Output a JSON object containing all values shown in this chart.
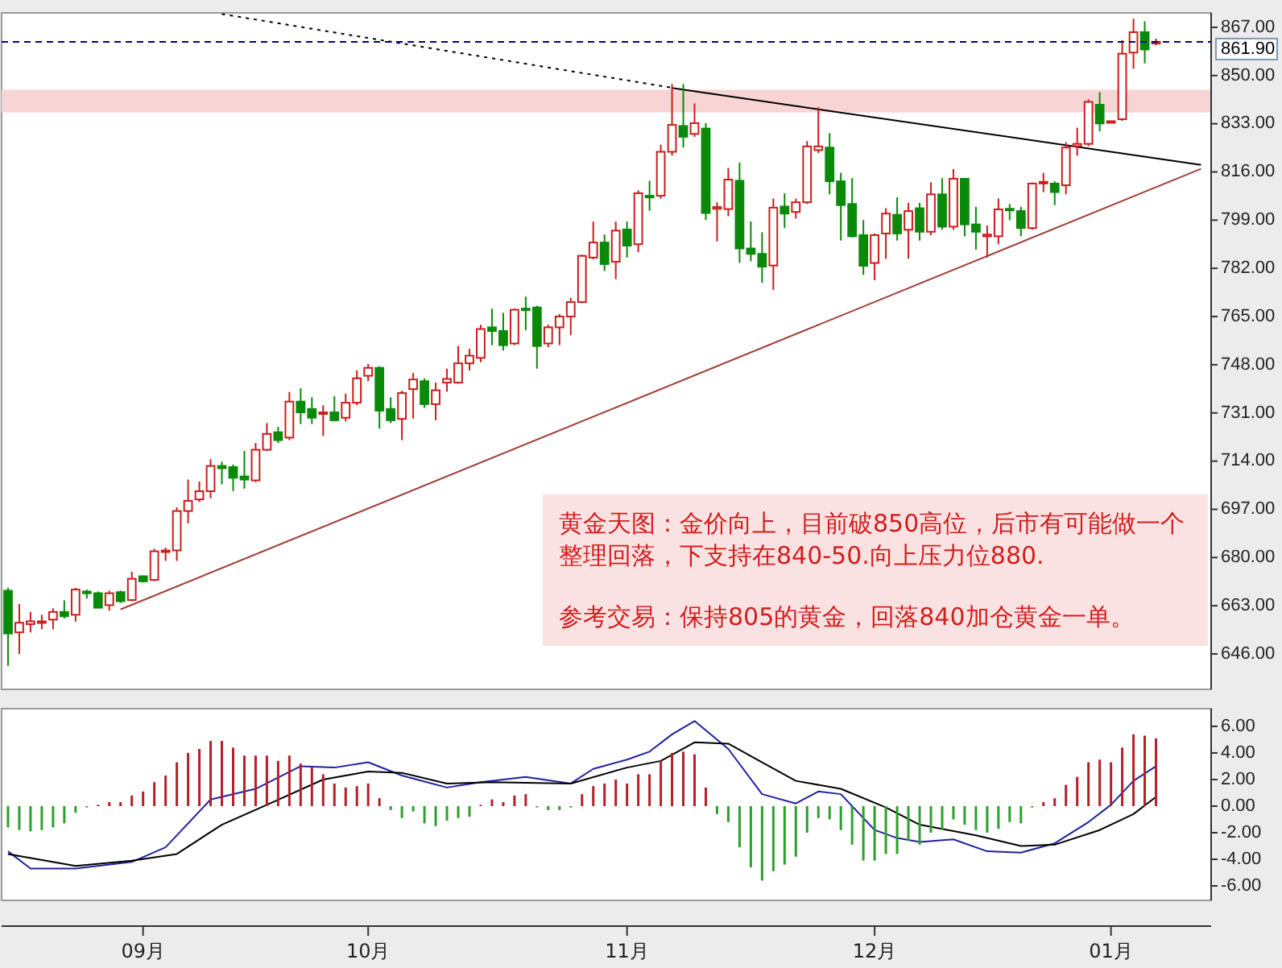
{
  "chart_data": [
    {
      "type": "candlestick",
      "tick_labels": "y",
      "ylim": [
        633.5,
        872.1
      ],
      "yticks": [
        {
          "value": 646,
          "label": "646.00"
        },
        {
          "value": 663,
          "label": "663.00"
        },
        {
          "value": 680,
          "label": "680.00"
        },
        {
          "value": 697,
          "label": "697.00"
        },
        {
          "value": 714,
          "label": "714.00"
        },
        {
          "value": 731,
          "label": "731.00"
        },
        {
          "value": 748,
          "label": "748.00"
        },
        {
          "value": 765,
          "label": "765.00"
        },
        {
          "value": 782,
          "label": "782.00"
        },
        {
          "value": 799,
          "label": "799.00"
        },
        {
          "value": 816,
          "label": "816.00"
        },
        {
          "value": 833,
          "label": "833.00"
        },
        {
          "value": 850,
          "label": "850.00"
        },
        {
          "value": 867,
          "label": "867.00"
        }
      ],
      "categories": [
        null,
        null,
        null,
        null,
        null,
        null,
        null,
        null,
        null,
        null,
        null,
        null,
        null,
        null,
        null,
        null,
        null,
        null,
        null,
        null,
        null,
        null,
        null,
        null,
        null,
        null,
        null,
        null,
        null,
        null,
        null,
        null,
        null,
        null,
        null,
        null,
        null,
        null,
        null,
        null,
        null,
        null,
        null,
        null,
        null,
        null,
        null,
        null,
        null,
        null,
        null,
        null,
        null,
        null,
        null,
        null,
        null,
        null,
        null,
        null,
        null,
        null,
        null,
        null,
        null,
        null,
        null,
        null,
        null,
        null,
        null,
        null,
        null,
        null,
        null,
        null,
        null,
        null,
        null,
        null,
        null,
        null,
        null,
        null,
        null,
        null,
        null,
        null,
        null,
        null,
        null,
        null,
        null,
        null,
        null,
        null,
        null,
        null,
        null,
        null,
        null,
        null,
        null,
        null,
        null,
        null,
        null
      ],
      "ohlc": [
        [
          668.3,
          669.3,
          641.8,
          653.2
        ],
        [
          653.6,
          663.6,
          646.0,
          657.0
        ],
        [
          656.5,
          660.8,
          653.6,
          657.5
        ],
        [
          657.0,
          659.8,
          654.7,
          657.5
        ],
        [
          658.1,
          662.1,
          654.7,
          660.8
        ],
        [
          660.8,
          664.9,
          658.5,
          659.3
        ],
        [
          659.8,
          669.3,
          657.4,
          668.7
        ],
        [
          668.0,
          668.7,
          665.5,
          667.4
        ],
        [
          667.4,
          668.0,
          662.1,
          662.3
        ],
        [
          663.2,
          668.3,
          661.3,
          667.4
        ],
        [
          667.8,
          668.3,
          664.0,
          664.6
        ],
        [
          665.0,
          675.0,
          664.6,
          672.5
        ],
        [
          673.4,
          673.6,
          671.2,
          671.6
        ],
        [
          672.1,
          683.1,
          671.7,
          682.2
        ],
        [
          682.0,
          683.5,
          678.8,
          682.5
        ],
        [
          682.5,
          697.7,
          678.8,
          696.4
        ],
        [
          696.4,
          707.5,
          692.0,
          700.0
        ],
        [
          700.5,
          706.8,
          699.6,
          703.4
        ],
        [
          703.4,
          714.7,
          700.9,
          712.3
        ],
        [
          712.3,
          713.8,
          705.8,
          711.5
        ],
        [
          711.9,
          712.8,
          703.4,
          708.1
        ],
        [
          708.6,
          717.6,
          704.3,
          707.5
        ],
        [
          707.2,
          720.4,
          706.6,
          718.0
        ],
        [
          718.0,
          727.4,
          717.6,
          723.6
        ],
        [
          724.2,
          726.1,
          720.4,
          721.4
        ],
        [
          722.3,
          738.4,
          721.4,
          735.0
        ],
        [
          735.0,
          739.7,
          727.1,
          731.2
        ],
        [
          732.4,
          736.5,
          727.1,
          729.3
        ],
        [
          730.8,
          733.7,
          722.9,
          731.2
        ],
        [
          731.2,
          736.9,
          728.0,
          728.4
        ],
        [
          729.3,
          737.8,
          728.0,
          734.6
        ],
        [
          734.6,
          746.0,
          733.7,
          743.2
        ],
        [
          744.1,
          748.3,
          742.2,
          746.9
        ],
        [
          746.9,
          747.5,
          725.5,
          731.8
        ],
        [
          732.4,
          736.5,
          727.4,
          728.4
        ],
        [
          728.9,
          738.8,
          721.4,
          738.0
        ],
        [
          739.4,
          745.1,
          729.0,
          742.8
        ],
        [
          742.2,
          743.2,
          732.8,
          734.1
        ],
        [
          734.1,
          741.7,
          728.4,
          739.0
        ],
        [
          741.7,
          746.6,
          738.5,
          743.0
        ],
        [
          741.7,
          754.6,
          741.3,
          748.5
        ],
        [
          748.5,
          753.6,
          746.0,
          751.2
        ],
        [
          750.4,
          762.1,
          748.9,
          760.6
        ],
        [
          761.2,
          767.8,
          754.9,
          759.9
        ],
        [
          759.9,
          766.3,
          753.0,
          754.9
        ],
        [
          755.5,
          767.8,
          754.9,
          767.4
        ],
        [
          767.8,
          772.0,
          760.2,
          767.4
        ],
        [
          768.2,
          768.8,
          746.6,
          754.6
        ],
        [
          755.5,
          762.1,
          754.2,
          761.2
        ],
        [
          761.2,
          765.9,
          754.9,
          765.0
        ],
        [
          765.0,
          771.6,
          758.4,
          770.1
        ],
        [
          770.1,
          786.8,
          769.7,
          786.4
        ],
        [
          785.8,
          798.5,
          785.2,
          791.1
        ],
        [
          791.1,
          793.9,
          781.1,
          783.5
        ],
        [
          784.3,
          798.5,
          778.2,
          795.3
        ],
        [
          795.7,
          798.5,
          785.8,
          790.0
        ],
        [
          790.5,
          809.5,
          787.7,
          808.5
        ],
        [
          807.6,
          812.9,
          802.3,
          807.0
        ],
        [
          807.6,
          825.6,
          806.6,
          823.1
        ],
        [
          823.1,
          847.0,
          821.8,
          832.6
        ],
        [
          832.2,
          847.0,
          824.6,
          828.4
        ],
        [
          829.4,
          840.2,
          828.4,
          833.2
        ],
        [
          831.3,
          833.2,
          799.1,
          801.5
        ],
        [
          803.0,
          805.3,
          791.5,
          803.6
        ],
        [
          802.9,
          817.4,
          800.4,
          813.3
        ],
        [
          812.9,
          819.3,
          783.9,
          789.0
        ],
        [
          789.0,
          798.5,
          784.5,
          787.1
        ],
        [
          787.1,
          794.7,
          776.9,
          782.6
        ],
        [
          783.0,
          806.6,
          774.4,
          803.4
        ],
        [
          803.8,
          808.5,
          796.2,
          801.3
        ],
        [
          801.9,
          806.6,
          799.6,
          805.3
        ],
        [
          805.3,
          826.9,
          804.7,
          825.0
        ],
        [
          823.7,
          838.8,
          822.7,
          825.0
        ],
        [
          824.6,
          829.7,
          808.1,
          812.7
        ],
        [
          812.7,
          815.7,
          791.8,
          804.3
        ],
        [
          804.7,
          813.8,
          792.9,
          793.3
        ],
        [
          793.7,
          799.0,
          779.7,
          782.9
        ],
        [
          783.9,
          794.3,
          777.8,
          793.7
        ],
        [
          794.3,
          803.2,
          785.4,
          801.3
        ],
        [
          800.9,
          807.0,
          791.8,
          794.3
        ],
        [
          795.6,
          805.1,
          785.4,
          802.2
        ],
        [
          803.2,
          805.1,
          791.8,
          794.9
        ],
        [
          794.9,
          812.3,
          793.7,
          808.1
        ],
        [
          808.1,
          813.8,
          795.6,
          796.7
        ],
        [
          796.7,
          817.0,
          795.6,
          813.6
        ],
        [
          813.6,
          813.6,
          793.3,
          797.5
        ],
        [
          797.5,
          803.7,
          788.6,
          794.9
        ],
        [
          793.3,
          797.1,
          785.8,
          793.9
        ],
        [
          793.3,
          806.6,
          790.5,
          802.8
        ],
        [
          803.0,
          804.7,
          799.0,
          802.5
        ],
        [
          802.2,
          803.7,
          793.3,
          796.2
        ],
        [
          796.2,
          812.3,
          795.6,
          811.9
        ],
        [
          812.1,
          815.7,
          808.9,
          812.5
        ],
        [
          811.9,
          812.7,
          804.3,
          808.9
        ],
        [
          811.3,
          826.5,
          808.1,
          824.6
        ],
        [
          825.1,
          831.6,
          821.7,
          825.9
        ],
        [
          825.9,
          841.6,
          825.1,
          840.7
        ],
        [
          839.7,
          844.1,
          830.3,
          833.1
        ],
        [
          833.7,
          834.0,
          833.5,
          833.9
        ],
        [
          834.6,
          862.5,
          834.0,
          857.7
        ],
        [
          858.1,
          870.0,
          852.4,
          865.3
        ],
        [
          865.3,
          869.1,
          854.3,
          859.2
        ],
        [
          861.3,
          863.0,
          860.6,
          861.9
        ],
        null,
        null,
        null,
        null
      ],
      "colors": [
        "#0a8a0a",
        "#c81e1e",
        "#c81e1e",
        "#c81e1e",
        "#c81e1e",
        "#0a8a0a",
        "#c81e1e",
        "#0a8a0a",
        "#0a8a0a",
        "#c81e1e",
        "#0a8a0a",
        "#c81e1e",
        "#0a8a0a",
        "#c81e1e",
        "#c81e1e",
        "#c81e1e",
        "#c81e1e",
        "#c81e1e",
        "#c81e1e",
        "#0a8a0a",
        "#0a8a0a",
        "#0a8a0a",
        "#c81e1e",
        "#c81e1e",
        "#0a8a0a",
        "#c81e1e",
        "#0a8a0a",
        "#0a8a0a",
        "#c81e1e",
        "#0a8a0a",
        "#c81e1e",
        "#c81e1e",
        "#c81e1e",
        "#0a8a0a",
        "#0a8a0a",
        "#c81e1e",
        "#c81e1e",
        "#0a8a0a",
        "#c81e1e",
        "#c81e1e",
        "#c81e1e",
        "#c81e1e",
        "#c81e1e",
        "#0a8a0a",
        "#0a8a0a",
        "#c81e1e",
        "#0a8a0a",
        "#0a8a0a",
        "#c81e1e",
        "#c81e1e",
        "#c81e1e",
        "#c81e1e",
        "#c81e1e",
        "#0a8a0a",
        "#c81e1e",
        "#0a8a0a",
        "#c81e1e",
        "#0a8a0a",
        "#c81e1e",
        "#c81e1e",
        "#0a8a0a",
        "#c81e1e",
        "#0a8a0a",
        "#c81e1e",
        "#c81e1e",
        "#0a8a0a",
        "#0a8a0a",
        "#0a8a0a",
        "#c81e1e",
        "#0a8a0a",
        "#c81e1e",
        "#c81e1e",
        "#c81e1e",
        "#0a8a0a",
        "#0a8a0a",
        "#0a8a0a",
        "#0a8a0a",
        "#c81e1e",
        "#c81e1e",
        "#0a8a0a",
        "#c81e1e",
        "#0a8a0a",
        "#c81e1e",
        "#0a8a0a",
        "#c81e1e",
        "#0a8a0a",
        "#0a8a0a",
        "#c81e1e",
        "#c81e1e",
        "#0a8a0a",
        "#0a8a0a",
        "#c81e1e",
        "#c81e1e",
        "#0a8a0a",
        "#c81e1e",
        "#c81e1e",
        "#c81e1e",
        "#0a8a0a",
        "#c81e1e",
        "#c81e1e",
        "#c81e1e",
        "#0a8a0a",
        "#c81e1e",
        null,
        null,
        null,
        null
      ],
      "series": [
        {
          "type": "line",
          "color": "#000000",
          "line_style": "dotted",
          "values": [
            null,
            null,
            null,
            null,
            null,
            null,
            null,
            null,
            null,
            null,
            null,
            null,
            null,
            null,
            null,
            null,
            null,
            null,
            null,
            871.7,
            null,
            null,
            null,
            null,
            null,
            null,
            null,
            null,
            null,
            null,
            null,
            null,
            null,
            null,
            null,
            null,
            null,
            null,
            null,
            null,
            null,
            null,
            null,
            null,
            null,
            null,
            null,
            null,
            null,
            null,
            null,
            null,
            null,
            null,
            null,
            null,
            null,
            null,
            null,
            845.7,
            null,
            null,
            null,
            null,
            null,
            null,
            null,
            null,
            null,
            null,
            null,
            null,
            null,
            null,
            null,
            null,
            null,
            null,
            null,
            null,
            null,
            null,
            null,
            null,
            null,
            null,
            null,
            null,
            null,
            null,
            null,
            null,
            null,
            null,
            null,
            null,
            null,
            null,
            null,
            null,
            null,
            null,
            null,
            null,
            null,
            null,
            null
          ]
        },
        {
          "type": "line",
          "color": "#000000",
          "line_style": "solid",
          "values": [
            null,
            null,
            null,
            null,
            null,
            null,
            null,
            null,
            null,
            null,
            null,
            null,
            null,
            null,
            null,
            null,
            null,
            null,
            null,
            null,
            null,
            null,
            null,
            null,
            null,
            null,
            null,
            null,
            null,
            null,
            null,
            null,
            null,
            null,
            null,
            null,
            null,
            null,
            null,
            null,
            null,
            null,
            null,
            null,
            null,
            null,
            null,
            null,
            null,
            null,
            null,
            null,
            null,
            null,
            null,
            null,
            null,
            null,
            null,
            845.6,
            null,
            null,
            null,
            null,
            null,
            null,
            null,
            null,
            null,
            null,
            null,
            null,
            null,
            null,
            null,
            null,
            null,
            null,
            null,
            null,
            null,
            null,
            null,
            null,
            null,
            null,
            null,
            null,
            null,
            null,
            null,
            null,
            null,
            null,
            null,
            null,
            null,
            null,
            null,
            null,
            null,
            null,
            null,
            null,
            null,
            null,
            818.5
          ]
        },
        {
          "type": "line",
          "color": "#a0403a",
          "line_style": "solid",
          "values": [
            null,
            null,
            null,
            null,
            null,
            null,
            null,
            null,
            null,
            null,
            661.7,
            null,
            null,
            null,
            null,
            null,
            null,
            null,
            null,
            null,
            null,
            null,
            null,
            null,
            null,
            null,
            null,
            null,
            null,
            null,
            null,
            null,
            null,
            null,
            null,
            null,
            null,
            null,
            null,
            null,
            null,
            null,
            null,
            null,
            null,
            null,
            null,
            null,
            null,
            null,
            null,
            null,
            null,
            null,
            null,
            null,
            null,
            null,
            null,
            null,
            null,
            null,
            null,
            null,
            null,
            null,
            null,
            null,
            null,
            null,
            null,
            null,
            null,
            null,
            null,
            null,
            null,
            null,
            null,
            null,
            null,
            null,
            null,
            null,
            null,
            null,
            null,
            null,
            null,
            null,
            null,
            null,
            null,
            null,
            null,
            null,
            null,
            null,
            null,
            null,
            null,
            null,
            null,
            null,
            null,
            null,
            817.1
          ]
        }
      ],
      "ref_lines": [
        {
          "axis": "y",
          "value": 861.9,
          "label": "861.90",
          "color": "#000080",
          "line_style": "dashed"
        }
      ],
      "bands": [
        {
          "axis": "y",
          "from": 837,
          "to": 845,
          "color": "#f8d4d4"
        }
      ],
      "annotations": [
        "黄金天图：金价向上，目前破850高位，后市有可能做一个整理回落，下支持在840-50.向上压力位880.",
        "参考交易：保持805的黄金，回落840加仓黄金一单。"
      ]
    },
    {
      "type": "bar",
      "ylim": [
        -7.09,
        7.33
      ],
      "yticks": [
        {
          "value": 6,
          "label": "6.00"
        },
        {
          "value": 4,
          "label": "4.00"
        },
        {
          "value": 2,
          "label": "2.00"
        },
        {
          "value": 0,
          "label": "0.00"
        },
        {
          "value": -2,
          "label": "-2.00"
        },
        {
          "value": -4,
          "label": "-4.00"
        },
        {
          "value": -6,
          "label": "-6.00"
        }
      ],
      "categories": [
        null,
        null,
        null,
        null,
        null,
        null,
        null,
        null,
        null,
        null,
        null,
        null,
        "09月",
        null,
        null,
        null,
        null,
        null,
        null,
        null,
        null,
        null,
        null,
        null,
        null,
        null,
        null,
        null,
        null,
        null,
        null,
        null,
        "10月",
        null,
        null,
        null,
        null,
        null,
        null,
        null,
        null,
        null,
        null,
        null,
        null,
        null,
        null,
        null,
        null,
        null,
        null,
        null,
        null,
        null,
        null,
        "11月",
        null,
        null,
        null,
        null,
        null,
        null,
        null,
        null,
        null,
        null,
        null,
        null,
        null,
        null,
        null,
        null,
        null,
        null,
        null,
        null,
        null,
        "12月",
        null,
        null,
        null,
        null,
        null,
        null,
        null,
        null,
        null,
        null,
        null,
        null,
        null,
        null,
        null,
        null,
        null,
        null,
        null,
        null,
        "01月",
        null,
        null,
        null,
        null,
        null,
        null,
        null,
        null
      ],
      "values": [
        -1.6,
        -1.8,
        -1.9,
        -1.8,
        -1.6,
        -1.3,
        -0.5,
        -0.1,
        0.1,
        0.3,
        0.3,
        0.8,
        1.1,
        1.8,
        2.3,
        3.3,
        4.0,
        4.3,
        4.9,
        4.9,
        4.4,
        3.8,
        3.8,
        3.8,
        3.4,
        3.8,
        3.2,
        2.9,
        2.4,
        1.7,
        1.4,
        1.5,
        1.7,
        0.6,
        -0.3,
        -0.9,
        -0.4,
        -1.3,
        -1.5,
        -1.1,
        -0.9,
        -0.8,
        0.1,
        0.5,
        0.3,
        0.8,
        0.9,
        -0.1,
        -0.3,
        -0.3,
        -0.1,
        0.9,
        1.5,
        1.7,
        2.0,
        1.7,
        2.4,
        2.4,
        3.4,
        4.0,
        4.1,
        3.9,
        1.4,
        -0.6,
        -1.2,
        -3.1,
        -4.6,
        -5.6,
        -4.9,
        -4.4,
        -3.8,
        -2.0,
        -0.9,
        -1.0,
        -1.8,
        -2.9,
        -4.1,
        -4.1,
        -3.6,
        -3.6,
        -2.6,
        -2.9,
        -2.0,
        -1.8,
        -1.0,
        -1.4,
        -1.8,
        -2.0,
        -1.7,
        -1.2,
        -1.3,
        -0.1,
        0.3,
        0.6,
        1.6,
        2.2,
        3.3,
        3.5,
        3.3,
        4.4,
        5.4,
        5.3,
        5.1,
        null,
        null,
        null,
        null
      ],
      "colors": [
        "#2ca02c",
        "#2ca02c",
        "#2ca02c",
        "#2ca02c",
        "#2ca02c",
        "#2ca02c",
        "#2ca02c",
        "#2ca02c",
        "#b4202a",
        "#b4202a",
        "#b4202a",
        "#b4202a",
        "#b4202a",
        "#b4202a",
        "#b4202a",
        "#b4202a",
        "#b4202a",
        "#b4202a",
        "#b4202a",
        "#b4202a",
        "#b4202a",
        "#b4202a",
        "#b4202a",
        "#b4202a",
        "#b4202a",
        "#b4202a",
        "#b4202a",
        "#b4202a",
        "#b4202a",
        "#b4202a",
        "#b4202a",
        "#b4202a",
        "#b4202a",
        "#b4202a",
        "#2ca02c",
        "#2ca02c",
        "#2ca02c",
        "#2ca02c",
        "#2ca02c",
        "#2ca02c",
        "#2ca02c",
        "#2ca02c",
        "#b4202a",
        "#b4202a",
        "#b4202a",
        "#b4202a",
        "#b4202a",
        "#2ca02c",
        "#2ca02c",
        "#2ca02c",
        "#2ca02c",
        "#b4202a",
        "#b4202a",
        "#b4202a",
        "#b4202a",
        "#b4202a",
        "#b4202a",
        "#b4202a",
        "#b4202a",
        "#b4202a",
        "#b4202a",
        "#b4202a",
        "#b4202a",
        "#2ca02c",
        "#2ca02c",
        "#2ca02c",
        "#2ca02c",
        "#2ca02c",
        "#2ca02c",
        "#2ca02c",
        "#2ca02c",
        "#2ca02c",
        "#2ca02c",
        "#2ca02c",
        "#2ca02c",
        "#2ca02c",
        "#2ca02c",
        "#2ca02c",
        "#2ca02c",
        "#2ca02c",
        "#2ca02c",
        "#2ca02c",
        "#2ca02c",
        "#2ca02c",
        "#2ca02c",
        "#2ca02c",
        "#2ca02c",
        "#2ca02c",
        "#2ca02c",
        "#2ca02c",
        "#2ca02c",
        "#2ca02c",
        "#b4202a",
        "#b4202a",
        "#b4202a",
        "#b4202a",
        "#b4202a",
        "#b4202a",
        "#b4202a",
        "#b4202a",
        "#b4202a",
        "#b4202a",
        "#b4202a",
        null,
        null,
        null,
        null
      ],
      "series": [
        {
          "type": "line",
          "color": "#2020a0",
          "values": [
            -3.4,
            null,
            -4.7,
            null,
            null,
            null,
            -4.7,
            null,
            null,
            null,
            null,
            -4.2,
            null,
            null,
            -3.1,
            null,
            null,
            null,
            0.5,
            null,
            null,
            null,
            1.3,
            null,
            null,
            null,
            3.0,
            null,
            null,
            2.9,
            null,
            null,
            3.3,
            null,
            null,
            2.3,
            null,
            null,
            null,
            1.4,
            null,
            null,
            1.8,
            null,
            null,
            null,
            2.2,
            null,
            null,
            null,
            1.7,
            null,
            2.8,
            null,
            null,
            3.5,
            null,
            4.1,
            null,
            5.4,
            null,
            6.4,
            null,
            null,
            4.3,
            null,
            null,
            0.9,
            null,
            null,
            0.2,
            null,
            1.1,
            null,
            0.9,
            null,
            null,
            -1.8,
            null,
            -2.4,
            null,
            -2.7,
            null,
            null,
            -2.5,
            null,
            null,
            -3.4,
            null,
            null,
            -3.5,
            null,
            null,
            -2.8,
            null,
            null,
            -1.2,
            null,
            0.1,
            null,
            1.9,
            null,
            3.0,
            null,
            null,
            null,
            null
          ]
        },
        {
          "type": "line",
          "color": "#000000",
          "values": [
            -3.6,
            null,
            null,
            null,
            null,
            null,
            -4.5,
            null,
            null,
            null,
            null,
            -4.1,
            null,
            null,
            null,
            -3.6,
            null,
            null,
            null,
            -1.4,
            null,
            null,
            null,
            0.1,
            null,
            null,
            null,
            null,
            2.0,
            null,
            null,
            null,
            2.6,
            null,
            null,
            2.5,
            null,
            null,
            null,
            1.7,
            null,
            null,
            null,
            1.8,
            null,
            null,
            null,
            null,
            null,
            null,
            1.7,
            null,
            null,
            null,
            null,
            2.9,
            null,
            null,
            3.4,
            null,
            null,
            4.8,
            null,
            null,
            4.7,
            null,
            null,
            3.3,
            null,
            null,
            1.9,
            null,
            null,
            null,
            1.3,
            null,
            null,
            null,
            -0.1,
            null,
            null,
            -1.4,
            null,
            null,
            null,
            null,
            -2.2,
            null,
            null,
            null,
            -3.0,
            null,
            null,
            -2.9,
            null,
            null,
            null,
            -1.8,
            null,
            null,
            -0.6,
            null,
            0.7,
            null,
            null,
            null,
            null
          ]
        }
      ]
    }
  ]
}
